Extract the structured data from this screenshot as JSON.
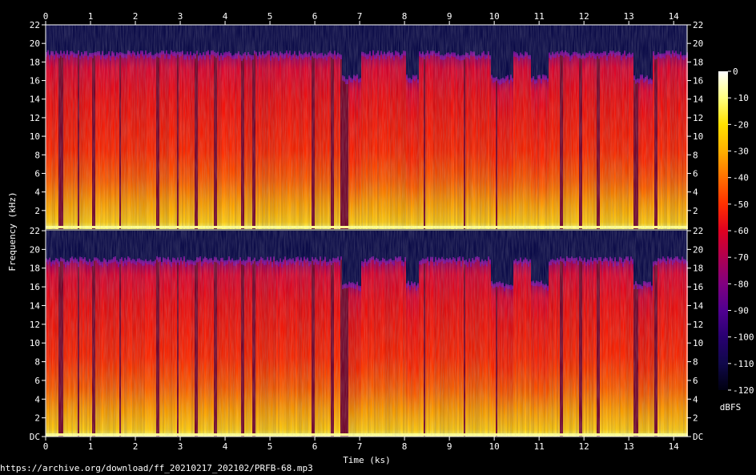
{
  "source_url": "https://archive.org/download/ff_20210217_202102/PRFB-68.mp3",
  "chart_data": {
    "type": "heatmap",
    "kind": "spectrogram",
    "channels": 2,
    "xlabel": "Time (ks)",
    "ylabel": "Frequency (kHz)",
    "xlim": [
      0,
      14.3
    ],
    "ylim": [
      0,
      22
    ],
    "x_ticks": [
      "0",
      "1",
      "2",
      "3",
      "4",
      "5",
      "6",
      "7",
      "8",
      "9",
      "10",
      "11",
      "12",
      "13",
      "14"
    ],
    "y_ticks_upper": [
      "22",
      "20",
      "18",
      "16",
      "14",
      "12",
      "10",
      "8",
      "6",
      "4",
      "2"
    ],
    "y_ticks_lower": [
      "DC",
      "2",
      "4",
      "6",
      "8",
      "10",
      "12",
      "14",
      "16",
      "18",
      "20",
      "22"
    ],
    "colorbar": {
      "label": "dBFS",
      "range": [
        -120,
        0
      ],
      "ticks": [
        "0",
        "-10",
        "-20",
        "-30",
        "-40",
        "-50",
        "-60",
        "-70",
        "-80",
        "-90",
        "-100",
        "-110",
        "-120"
      ],
      "colors": [
        "#ffffff",
        "#ffff80",
        "#ffe000",
        "#ffb000",
        "#ff7000",
        "#ff3000",
        "#e00020",
        "#b00050",
        "#800080",
        "#500090",
        "#280070",
        "#10084a",
        "#000010"
      ]
    },
    "cutoff_khz": 18.8,
    "quiet_cutoff_khz": 16.2,
    "quiet_segments_ks": [
      [
        0.28,
        0.36
      ],
      [
        0.68,
        0.74
      ],
      [
        1.02,
        1.08
      ],
      [
        1.62,
        1.66
      ],
      [
        2.45,
        2.52
      ],
      [
        2.9,
        2.96
      ],
      [
        3.32,
        3.38
      ],
      [
        3.72,
        3.8
      ],
      [
        4.35,
        4.42
      ],
      [
        4.58,
        4.66
      ],
      [
        5.9,
        5.98
      ],
      [
        6.35,
        6.42
      ],
      [
        6.55,
        6.72
      ],
      [
        8.4,
        8.45
      ],
      [
        9.3,
        9.35
      ],
      [
        10.0,
        10.06
      ],
      [
        11.45,
        11.5
      ],
      [
        11.88,
        11.95
      ],
      [
        12.28,
        12.35
      ],
      [
        13.1,
        13.18
      ],
      [
        13.55,
        13.62
      ]
    ],
    "low_cut_segments_ks": [
      [
        6.6,
        7.0
      ],
      [
        8.0,
        8.3
      ],
      [
        9.9,
        10.4
      ],
      [
        10.8,
        11.2
      ],
      [
        13.1,
        13.5
      ]
    ],
    "note": "Energy concentrated below 6 kHz (yellow/orange, about -40 to -25 dBFS); 6 to 18.8 kHz mostly red (about -55 to -45 dBFS); above the cutoff dark blue (about -110 dBFS)."
  }
}
